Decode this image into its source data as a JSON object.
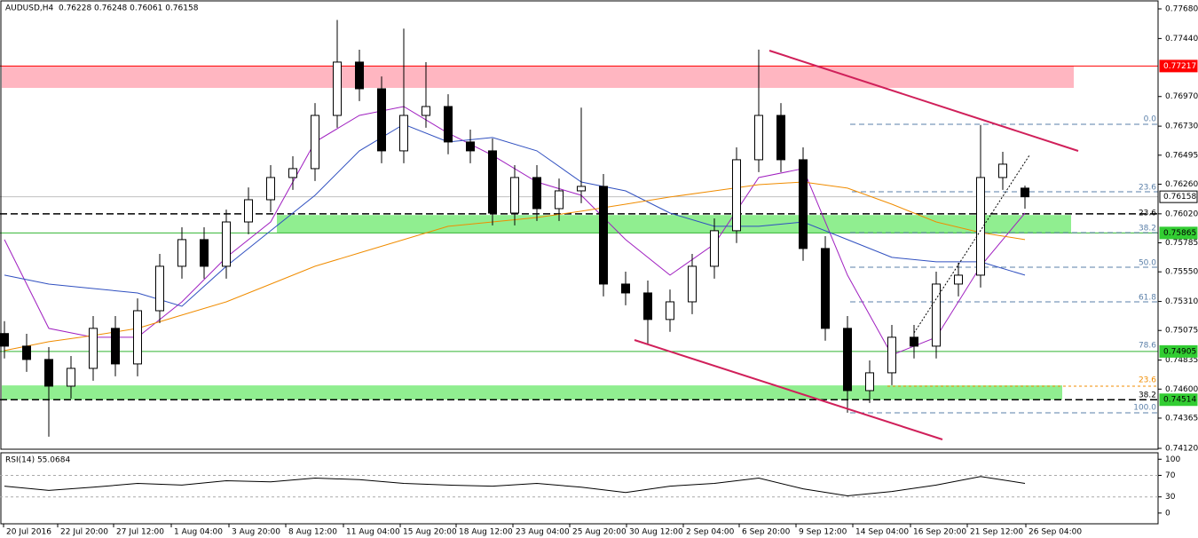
{
  "chart_data": {
    "type": "candlestick",
    "title": "AUDUSD,H4  0.76228 0.76248 0.76061 0.76158",
    "x": [
      1,
      6,
      11,
      16,
      21,
      26,
      31,
      36,
      41,
      46,
      51,
      56,
      61,
      66,
      71,
      76,
      81,
      86,
      91,
      96,
      101,
      106,
      111,
      116,
      121,
      126,
      131,
      136,
      141,
      146,
      151,
      156,
      161,
      166,
      171,
      176,
      181,
      186,
      191,
      196,
      201,
      206,
      211,
      216,
      221,
      226,
      231
    ],
    "open": [
      0.7505,
      0.74948,
      0.7484,
      0.74624,
      0.74768,
      0.75092,
      0.74804,
      0.75235,
      0.75595,
      0.75811,
      0.75595,
      0.75954,
      0.76134,
      0.76314,
      0.76386,
      0.76817,
      0.77249,
      0.77033,
      0.7653,
      0.76817,
      0.76889,
      0.76602,
      0.7653,
      0.76026,
      0.76314,
      0.76062,
      0.76206,
      0.76242,
      0.75451,
      0.75379,
      0.75164,
      0.75307,
      0.75595,
      0.75883,
      0.76458,
      0.76817,
      0.76458,
      0.75739,
      0.75092,
      0.74588,
      0.74732,
      0.7502,
      0.74948,
      0.75451,
      0.75523,
      0.76314,
      0.76228
    ],
    "high": [
      0.7515,
      0.75048,
      0.7494,
      0.74868,
      0.75192,
      0.75192,
      0.75335,
      0.75695,
      0.75911,
      0.75911,
      0.76054,
      0.76234,
      0.76414,
      0.76486,
      0.76917,
      0.7759,
      0.77349,
      0.77133,
      0.7752,
      0.77249,
      0.76989,
      0.76702,
      0.7663,
      0.76414,
      0.76414,
      0.76306,
      0.7688,
      0.76342,
      0.75551,
      0.75479,
      0.75407,
      0.75695,
      0.75983,
      0.76558,
      0.7735,
      0.76917,
      0.76558,
      0.75839,
      0.75192,
      0.74832,
      0.7512,
      0.7512,
      0.75551,
      0.75623,
      0.7674,
      0.76522,
      0.76248
    ],
    "low": [
      0.74848,
      0.7474,
      0.74215,
      0.74524,
      0.74668,
      0.74704,
      0.74704,
      0.75135,
      0.75495,
      0.75495,
      0.75495,
      0.75854,
      0.76034,
      0.76214,
      0.76286,
      0.76717,
      0.76933,
      0.7643,
      0.7643,
      0.76717,
      0.76502,
      0.7643,
      0.75926,
      0.75926,
      0.75962,
      0.75962,
      0.76106,
      0.75351,
      0.75279,
      0.7497,
      0.75064,
      0.75207,
      0.75495,
      0.75783,
      0.76358,
      0.76358,
      0.75639,
      0.74992,
      0.74409,
      0.74488,
      0.74632,
      0.74848,
      0.74848,
      0.75351,
      0.75423,
      0.76214,
      0.76061
    ],
    "close": [
      0.74948,
      0.7484,
      0.74624,
      0.74768,
      0.75092,
      0.74804,
      0.75235,
      0.75595,
      0.75811,
      0.75595,
      0.75954,
      0.76134,
      0.76314,
      0.76386,
      0.76817,
      0.77249,
      0.77033,
      0.7653,
      0.76817,
      0.76889,
      0.76602,
      0.7653,
      0.76026,
      0.76314,
      0.76062,
      0.76206,
      0.76242,
      0.75451,
      0.75379,
      0.75164,
      0.75307,
      0.75595,
      0.75883,
      0.76458,
      0.76817,
      0.76458,
      0.75739,
      0.75092,
      0.74588,
      0.74732,
      0.7502,
      0.74948,
      0.75451,
      0.75523,
      0.76314,
      0.76422,
      0.76158
    ],
    "up_color": "#ffffff",
    "down_color": "#000000",
    "xlim": [
      0,
      261
    ],
    "xticks": [
      {
        "value": 0.8,
        "label": "20 Jul 2016"
      },
      {
        "value": 13,
        "label": "22 Jul 20:00"
      },
      {
        "value": 25.6,
        "label": "27 Jul 12:00"
      },
      {
        "value": 38.6,
        "label": "1 Aug 04:00"
      },
      {
        "value": 51.6,
        "label": "3 Aug 20:00"
      },
      {
        "value": 64.4,
        "label": "8 Aug 12:00"
      },
      {
        "value": 77.4,
        "label": "11 Aug 04:00"
      },
      {
        "value": 90.2,
        "label": "15 Aug 20:00"
      },
      {
        "value": 102.8,
        "label": "18 Aug 12:00"
      },
      {
        "value": 115.6,
        "label": "23 Aug 04:00"
      },
      {
        "value": 128.4,
        "label": "25 Aug 20:00"
      },
      {
        "value": 141.2,
        "label": "30 Aug 12:00"
      },
      {
        "value": 154,
        "label": "2 Sep 04:00"
      },
      {
        "value": 166.6,
        "label": "6 Sep 20:00"
      },
      {
        "value": 179.4,
        "label": "9 Sep 12:00"
      },
      {
        "value": 192.2,
        "label": "14 Sep 04:00"
      },
      {
        "value": 205.2,
        "label": "16 Sep 20:00"
      },
      {
        "value": 218,
        "label": "21 Sep 12:00"
      },
      {
        "value": 231.2,
        "label": "26 Sep 04:00"
      }
    ],
    "ylim": [
      0.74113,
      0.77752
    ],
    "yticks": [
      {
        "value": 0.7768,
        "label": "0.77680"
      },
      {
        "value": 0.7744,
        "label": "0.77440"
      },
      {
        "value": 0.7697,
        "label": "0.76970"
      },
      {
        "value": 0.7673,
        "label": "0.76730"
      },
      0.76495,
      {
        "value": 0.7626,
        "label": "0.76260"
      },
      {
        "value": 0.7602,
        "label": "0.76020"
      },
      0.75785,
      {
        "value": 0.7555,
        "label": "0.75550"
      },
      {
        "value": 0.7531,
        "label": "0.75310"
      },
      0.75075,
      0.74835,
      {
        "value": 0.746,
        "label": "0.74600"
      },
      0.74365,
      {
        "value": 0.7412,
        "label": "0.74120"
      }
    ],
    "series": [
      {
        "color": "#a020c0",
        "x": [
          1,
          11,
          21,
          31,
          41,
          51,
          61,
          71,
          81,
          91,
          101,
          111,
          121,
          131,
          141,
          151,
          161,
          171,
          181,
          191,
          201,
          211,
          221,
          231
        ],
        "values": [
          0.75811,
          0.75092,
          0.7502,
          0.7502,
          0.75307,
          0.75667,
          0.75954,
          0.76602,
          0.76817,
          0.76889,
          0.76673,
          0.76494,
          0.76278,
          0.7617,
          0.75811,
          0.75523,
          0.75775,
          0.76314,
          0.76386,
          0.75523,
          0.74876,
          0.7502,
          0.75595,
          0.76026
        ]
      },
      {
        "color": "#3050c0",
        "x": [
          1,
          11,
          21,
          31,
          41,
          51,
          61,
          71,
          81,
          91,
          101,
          111,
          121,
          131,
          141,
          151,
          161,
          171,
          181,
          191,
          201,
          211,
          221,
          231
        ],
        "values": [
          0.75523,
          0.75451,
          0.75415,
          0.75379,
          0.75271,
          0.75595,
          0.75883,
          0.7617,
          0.7653,
          0.76745,
          0.76602,
          0.76638,
          0.7653,
          0.76278,
          0.76206,
          0.76026,
          0.75919,
          0.75919,
          0.75954,
          0.75811,
          0.75667,
          0.75631,
          0.75631,
          0.75523
        ]
      },
      {
        "color": "#f08c00",
        "x": [
          1,
          11,
          21,
          31,
          41,
          51,
          61,
          71,
          81,
          91,
          101,
          111,
          121,
          131,
          141,
          151,
          161,
          171,
          181,
          191,
          201,
          211,
          221,
          231
        ],
        "values": [
          0.74912,
          0.74984,
          0.75034,
          0.75092,
          0.752,
          0.75307,
          0.75451,
          0.75595,
          0.75703,
          0.75811,
          0.75919,
          0.75954,
          0.7599,
          0.76041,
          0.76098,
          0.76156,
          0.76206,
          0.76256,
          0.76278,
          0.76228,
          0.76098,
          0.75954,
          0.75868,
          0.75811
        ]
      }
    ],
    "zones": [
      {
        "from": 0.77217,
        "to": 0.7704,
        "color": "#ffb6c1"
      },
      {
        "from": 0.7601,
        "to": 0.75865,
        "color": "#90ee90"
      },
      {
        "from": 0.7463,
        "to": 0.74514,
        "color": "#90ee90"
      }
    ],
    "levels": [
      {
        "value": 0.77217,
        "color": "#ff0000",
        "dashed": false
      },
      {
        "value": 0.76158,
        "color": "#c0c0c0",
        "dashed": false
      },
      {
        "value": 0.7602,
        "color": "#000000",
        "dashed": true
      },
      {
        "value": 0.75865,
        "color": "#32b432",
        "dashed": false
      },
      {
        "value": 0.74905,
        "color": "#32b432",
        "dashed": false
      },
      {
        "value": 0.74514,
        "color": "#000000",
        "dashed": true
      }
    ],
    "price_labels": [
      {
        "value": 0.77217,
        "color": "#ff0000",
        "text_color": "#ffffff"
      },
      {
        "value": 0.76158,
        "color": "#ffffff",
        "text_color": "#000000"
      },
      {
        "value": 0.75865,
        "color": "#32cd32",
        "text_color": "#000000"
      },
      {
        "value": 0.74905,
        "color": "#32cd32",
        "text_color": "#000000"
      },
      {
        "value": 0.74514,
        "color": "#32cd32",
        "text_color": "#000000"
      }
    ],
    "fib_labels": [
      "0.0",
      "23.6",
      "38.2",
      "50.0",
      "61.8",
      "78.6",
      "100.0",
      "23.6",
      "38.2",
      "23.6"
    ],
    "indicator": {
      "type": "line",
      "title": "RSI(14) 55.0684",
      "color": "#000000",
      "x": [
        1,
        11,
        21,
        31,
        41,
        51,
        61,
        71,
        81,
        91,
        101,
        111,
        121,
        131,
        141,
        151,
        161,
        171,
        181,
        191,
        201,
        211,
        221,
        231
      ],
      "values": [
        50,
        42,
        48,
        55,
        52,
        60,
        58,
        65,
        62,
        55,
        52,
        50,
        55,
        48,
        38,
        50,
        55,
        65,
        45,
        32,
        40,
        52,
        68,
        55
      ],
      "ylim": [
        -20,
        112
      ],
      "yticks": [
        100,
        70,
        30,
        0
      ],
      "levels": [
        70,
        30
      ]
    }
  }
}
